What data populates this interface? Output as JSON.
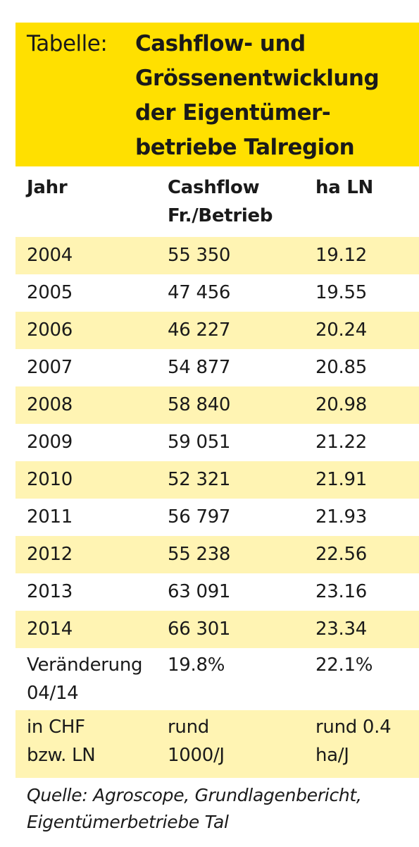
{
  "title": {
    "label": "Tabelle:",
    "text": "Cashflow- und Grössenentwicklung der Eigentümer-betriebe Talregion"
  },
  "columns": {
    "year": "Jahr",
    "cashflow_line1": "Cashflow",
    "cashflow_line2": "Fr./Betrieb",
    "area": "ha LN"
  },
  "rows": [
    {
      "year": "2004",
      "cashflow": "55 350",
      "area": "19.12"
    },
    {
      "year": "2005",
      "cashflow": "47 456",
      "area": "19.55"
    },
    {
      "year": "2006",
      "cashflow": "46 227",
      "area": "20.24"
    },
    {
      "year": "2007",
      "cashflow": "54 877",
      "area": "20.85"
    },
    {
      "year": "2008",
      "cashflow": "58 840",
      "area": "20.98"
    },
    {
      "year": "2009",
      "cashflow": "59 051",
      "area": "21.22"
    },
    {
      "year": "2010",
      "cashflow": "52 321",
      "area": "21.91"
    },
    {
      "year": "2011",
      "cashflow": "56 797",
      "area": "21.93"
    },
    {
      "year": "2012",
      "cashflow": "55 238",
      "area": "22.56"
    },
    {
      "year": "2013",
      "cashflow": "63 091",
      "area": "23.16"
    },
    {
      "year": "2014",
      "cashflow": "66 301",
      "area": "23.34"
    }
  ],
  "change": {
    "label_line1": "Veränderung",
    "label_line2": "04/14",
    "cashflow": "19.8%",
    "area": "22.1%"
  },
  "absolute": {
    "label_line1": "in CHF",
    "label_line2": "bzw. LN",
    "cashflow_line1": "rund",
    "cashflow_line2": "1000/J",
    "area_line1": "rund 0.4",
    "area_line2": "ha/J"
  },
  "source": {
    "line1": "Quelle: Agroscope, Grundlagenbericht,",
    "line2": "Eigentümerbetriebe Tal"
  },
  "colors": {
    "title_background": "#ffe000",
    "row_shading": "#fff4b3"
  }
}
